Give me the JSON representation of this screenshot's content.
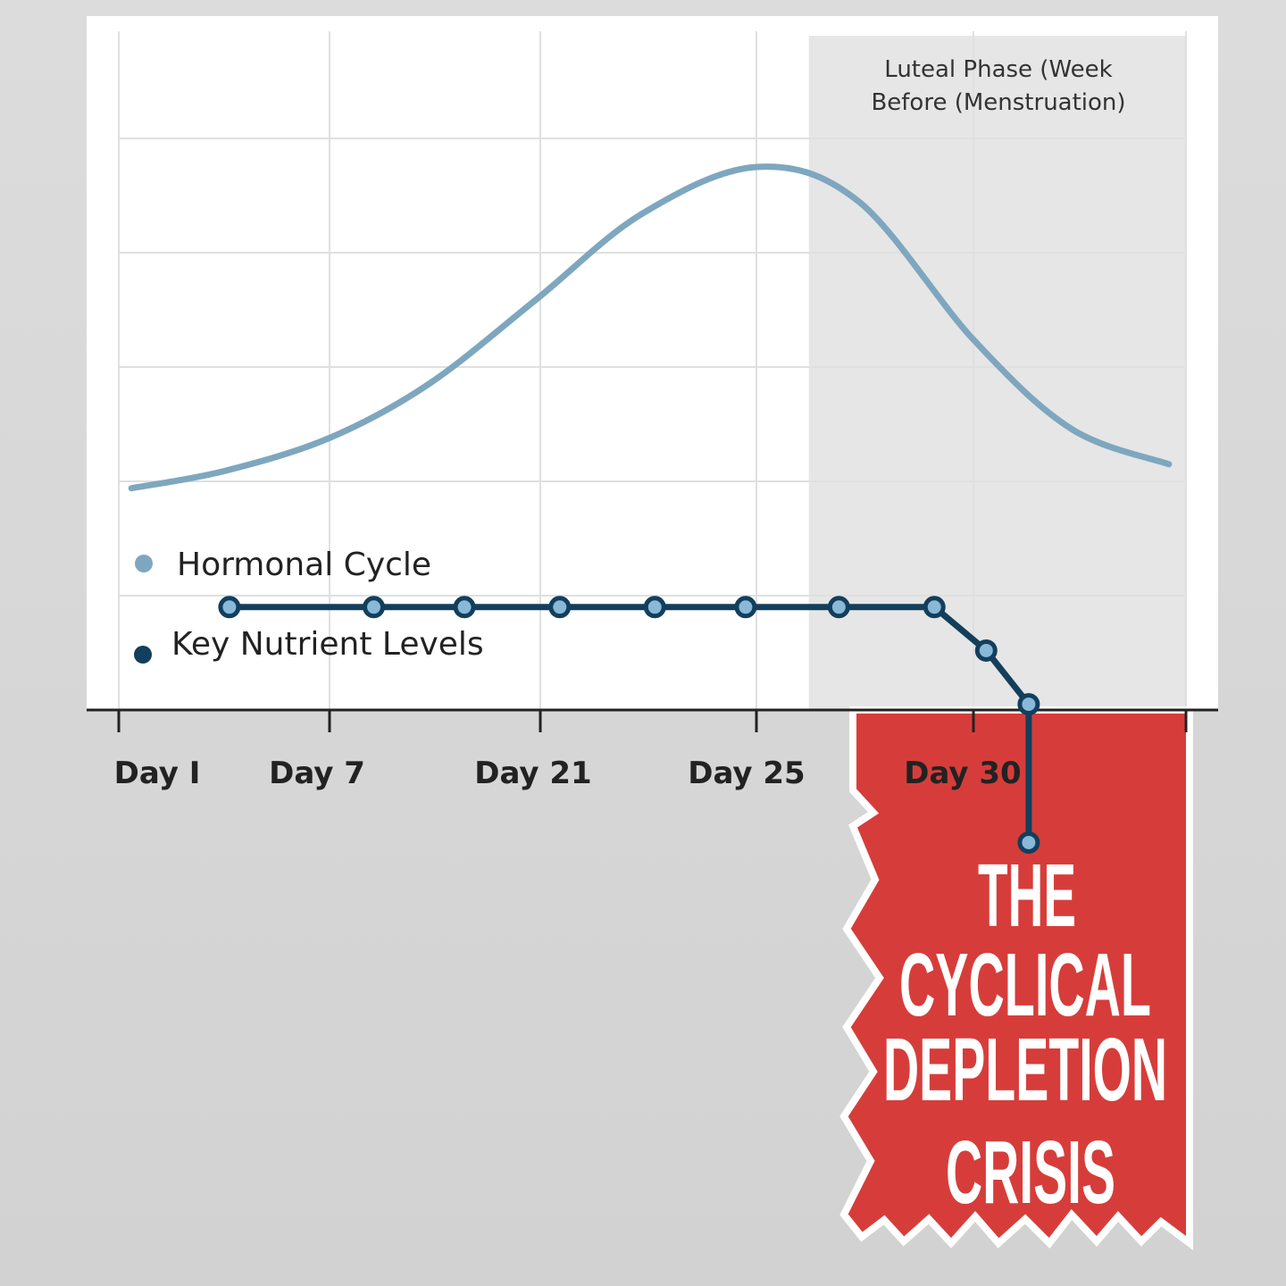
{
  "chart_data": {
    "type": "line",
    "title": "",
    "xlabel": "",
    "ylabel": "",
    "x_ticks": [
      "Day I",
      "Day 7",
      "Day 21",
      "Day 25",
      "Day 30",
      ""
    ],
    "grid": true,
    "legend_placement": "left",
    "shaded_region": {
      "label_line1": "Luteal Phase (Week",
      "label_line2": "Before (Menstruation)",
      "from_tick": 3.25,
      "to_tick": 5
    },
    "series": [
      {
        "name": "Hormonal Cycle",
        "color": "#7ea7bf",
        "style": "smooth",
        "x": [
          0.06,
          0.5,
          1.0,
          1.47,
          1.98,
          2.47,
          3.0,
          3.47,
          4.0,
          4.46,
          4.92
        ],
        "y": [
          1.94,
          2.09,
          2.38,
          2.85,
          3.59,
          4.34,
          4.75,
          4.45,
          3.24,
          2.46,
          2.15
        ]
      },
      {
        "name": "Key Nutrient Levels",
        "color": "#123f5c",
        "style": "markers",
        "x": [
          0.525,
          1.21,
          1.64,
          2.09,
          2.53,
          2.95,
          3.38,
          3.82,
          4.06,
          4.26,
          4.26
        ],
        "y": [
          0.9,
          0.9,
          0.9,
          0.9,
          0.9,
          0.9,
          0.9,
          0.9,
          0.52,
          0.05,
          -1.16
        ]
      }
    ],
    "ylim": [
      0,
      6
    ],
    "annotation": {
      "lines": [
        "THE",
        "CYCLICAL",
        "DEPLETION",
        "CRISIS"
      ],
      "color": "#d63d3a"
    }
  }
}
